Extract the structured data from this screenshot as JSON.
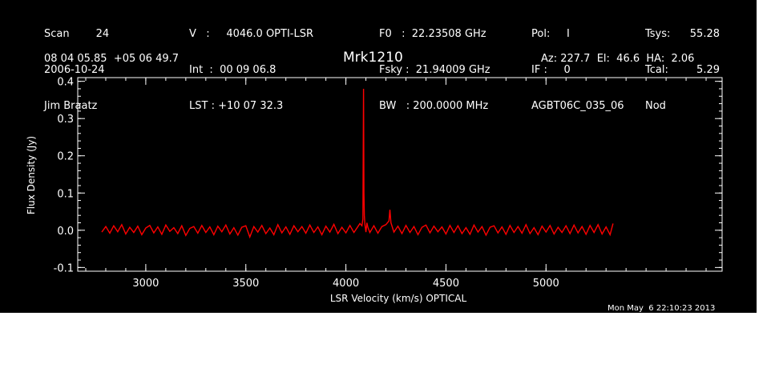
{
  "header": {
    "col1": [
      "Scan        24",
      "2006-10-24",
      "Jim Braatz"
    ],
    "col2": [
      "V   :     4046.0 OPTI-LSR",
      "Int  :  00 09 06.8",
      "LST : +10 07 32.3"
    ],
    "col3": [
      "F0   :  22.23508 GHz",
      "Fsky :  21.94009 GHz",
      "BW   : 200.0000 MHz"
    ],
    "col4": [
      "Pol:     I",
      "IF :     0",
      "AGBT06C_035_06"
    ],
    "col5a": [
      "Tsys:",
      "Tcal:",
      "Nod"
    ],
    "col5b": [
      "55.28",
      "5.29",
      ""
    ],
    "coords": "08 04 05.85  +05 06 49.7",
    "source": "Mrk1210",
    "azelha": "Az: 227.7  El:  46.6  HA:  2.06"
  },
  "timestamp": "Mon May  6 22:10:23 2013",
  "colors": {
    "background": "#000000",
    "axes": "#ffffff",
    "trace": "#ff0000"
  },
  "chart_data": {
    "type": "line",
    "xlabel": "LSR Velocity (km/s) OPTICAL",
    "ylabel": "Flux Density (Jy)",
    "xlim": [
      2660,
      5880
    ],
    "ylim": [
      -0.11,
      0.41
    ],
    "xticks": [
      {
        "value": 3000,
        "label": "3000"
      },
      {
        "value": 3500,
        "label": "3500"
      },
      {
        "value": 4000,
        "label": "4000"
      },
      {
        "value": 4500,
        "label": "4500"
      },
      {
        "value": 5000,
        "label": "5000"
      }
    ],
    "yticks": [
      {
        "value": -0.1,
        "label": "-0.1"
      },
      {
        "value": 0.0,
        "label": "0.0"
      },
      {
        "value": 0.1,
        "label": "0.1"
      },
      {
        "value": 0.2,
        "label": "0.2"
      },
      {
        "value": 0.3,
        "label": "0.3"
      },
      {
        "value": 0.4,
        "label": "0.4"
      }
    ],
    "series": [
      {
        "x": [
          2780,
          2800,
          2820,
          2840,
          2860,
          2880,
          2900,
          2920,
          2940,
          2960,
          2980,
          3000,
          3020,
          3040,
          3060,
          3080,
          3100,
          3120,
          3140,
          3160,
          3180,
          3200,
          3220,
          3240,
          3260,
          3280,
          3300,
          3320,
          3340,
          3360,
          3380,
          3400,
          3420,
          3440,
          3460,
          3480,
          3500,
          3520,
          3540,
          3560,
          3580,
          3600,
          3620,
          3640,
          3660,
          3680,
          3700,
          3720,
          3740,
          3760,
          3780,
          3800,
          3820,
          3840,
          3860,
          3880,
          3900,
          3920,
          3940,
          3960,
          3980,
          4000,
          4020,
          4040,
          4060,
          4070,
          4080,
          4085,
          4088,
          4090,
          4092,
          4095,
          4100,
          4105,
          4110,
          4120,
          4140,
          4160,
          4180,
          4200,
          4215,
          4220,
          4225,
          4240,
          4260,
          4280,
          4300,
          4320,
          4340,
          4360,
          4380,
          4400,
          4420,
          4440,
          4460,
          4480,
          4500,
          4520,
          4540,
          4560,
          4580,
          4600,
          4620,
          4640,
          4660,
          4680,
          4700,
          4720,
          4740,
          4760,
          4780,
          4800,
          4820,
          4840,
          4860,
          4880,
          4900,
          4920,
          4940,
          4960,
          4980,
          5000,
          5020,
          5040,
          5060,
          5080,
          5100,
          5120,
          5140,
          5160,
          5180,
          5200,
          5220,
          5240,
          5260,
          5280,
          5300,
          5320,
          5335
        ],
        "y": [
          -0.005,
          0.01,
          -0.008,
          0.012,
          -0.004,
          0.015,
          -0.01,
          0.008,
          -0.006,
          0.011,
          -0.012,
          0.006,
          0.013,
          -0.007,
          0.009,
          -0.011,
          0.014,
          -0.003,
          0.007,
          -0.009,
          0.012,
          -0.014,
          0.005,
          0.01,
          -0.008,
          0.013,
          -0.006,
          0.009,
          -0.012,
          0.011,
          -0.004,
          0.014,
          -0.01,
          0.007,
          -0.013,
          0.008,
          0.012,
          -0.018,
          0.01,
          -0.005,
          0.013,
          -0.009,
          0.006,
          -0.012,
          0.015,
          -0.007,
          0.009,
          -0.011,
          0.012,
          -0.004,
          0.01,
          -0.008,
          0.014,
          -0.006,
          0.009,
          -0.012,
          0.011,
          -0.005,
          0.016,
          -0.009,
          0.008,
          -0.007,
          0.013,
          -0.006,
          0.01,
          0.018,
          0.012,
          0.03,
          0.38,
          0.1,
          0.04,
          0.015,
          -0.005,
          0.02,
          0.008,
          -0.006,
          0.012,
          -0.008,
          0.01,
          0.015,
          0.025,
          0.055,
          0.02,
          -0.005,
          0.011,
          -0.009,
          0.013,
          -0.006,
          0.01,
          -0.012,
          0.008,
          0.014,
          -0.007,
          0.011,
          -0.004,
          0.009,
          -0.01,
          0.013,
          -0.006,
          0.012,
          -0.009,
          0.007,
          -0.011,
          0.014,
          -0.005,
          0.01,
          -0.013,
          0.008,
          0.012,
          -0.007,
          0.009,
          -0.011,
          0.013,
          -0.006,
          0.01,
          -0.008,
          0.015,
          -0.009,
          0.007,
          -0.012,
          0.011,
          -0.005,
          0.013,
          -0.01,
          0.008,
          -0.006,
          0.012,
          -0.009,
          0.014,
          -0.007,
          0.01,
          -0.011,
          0.013,
          -0.006,
          0.015,
          -0.01,
          0.009,
          -0.012,
          0.018
        ]
      }
    ]
  }
}
